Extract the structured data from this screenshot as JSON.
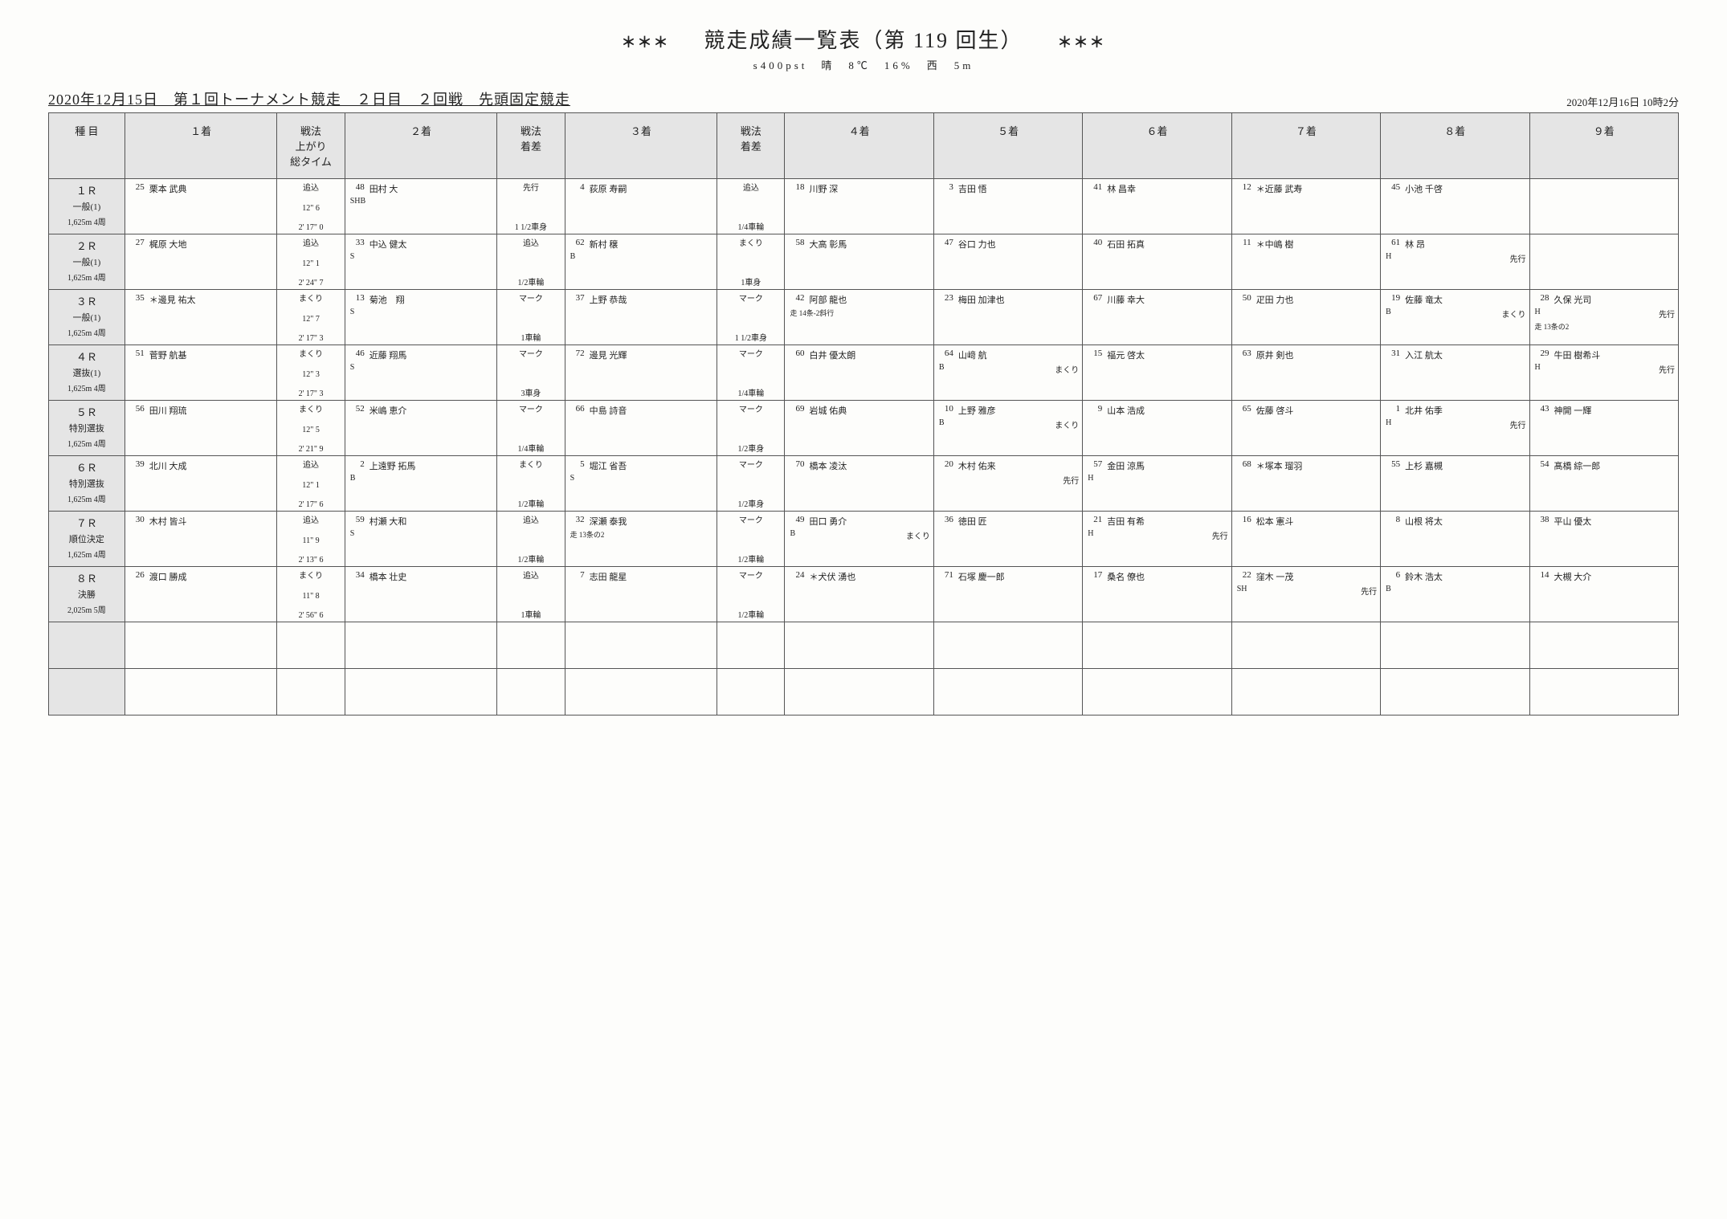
{
  "header": {
    "stars": "＊＊＊",
    "title": "競走成績一覧表（第 119 回生）",
    "subtitle": "s400pst　晴　8℃　16%　西　5m",
    "line_left": "2020年12月15日　第１回トーナメント競走　２日目　２回戦　先頭固定競走",
    "line_right": "2020年12月16日 10時2分"
  },
  "columns": [
    "種 目",
    "１着",
    "戦法\n上がり\n総タイム",
    "２着",
    "戦法\n着差",
    "３着",
    "戦法\n着差",
    "４着",
    "５着",
    "６着",
    "７着",
    "８着",
    "９着"
  ],
  "races": [
    {
      "event": {
        "race": "１Ｒ",
        "cat": "一般(1)",
        "dist": "1,625m 4周"
      },
      "p1": {
        "num": "25",
        "name": "栗本 武典"
      },
      "t1": {
        "a": "追込",
        "b": "12\" 6",
        "c": "2' 17\" 0"
      },
      "p2": {
        "num": "48",
        "name": "田村 大",
        "note": "SHB"
      },
      "t2": {
        "a": "先行",
        "c": "1 1/2車身"
      },
      "p3": {
        "num": "4",
        "name": "荻原 寿嗣"
      },
      "t3": {
        "a": "追込",
        "c": "1/4車輪"
      },
      "rest": [
        {
          "num": "18",
          "name": "川野 深"
        },
        {
          "num": "3",
          "name": "吉田 悟"
        },
        {
          "num": "41",
          "name": "林 昌幸"
        },
        {
          "num": "12",
          "name": "＊近藤 武寿"
        },
        {
          "num": "45",
          "name": "小池 千啓"
        },
        {}
      ]
    },
    {
      "event": {
        "race": "２Ｒ",
        "cat": "一般(1)",
        "dist": "1,625m 4周"
      },
      "p1": {
        "num": "27",
        "name": "梶原 大地"
      },
      "t1": {
        "a": "追込",
        "b": "12\" 1",
        "c": "2' 24\" 7"
      },
      "p2": {
        "num": "33",
        "name": "中込 健太",
        "note": "S"
      },
      "t2": {
        "a": "追込",
        "c": "1/2車輪"
      },
      "p3": {
        "num": "62",
        "name": "新村 穣",
        "note": "B"
      },
      "t3": {
        "a": "まくり",
        "c": "1車身"
      },
      "rest": [
        {
          "num": "58",
          "name": "大高 彰馬"
        },
        {
          "num": "47",
          "name": "谷口 力也"
        },
        {
          "num": "40",
          "name": "石田 拓真"
        },
        {
          "num": "11",
          "name": "＊中嶋 樹"
        },
        {
          "num": "61",
          "name": "林 昂",
          "note": "H",
          "note2": "先行"
        },
        {}
      ]
    },
    {
      "event": {
        "race": "３Ｒ",
        "cat": "一般(1)",
        "dist": "1,625m 4周"
      },
      "p1": {
        "num": "35",
        "name": "＊邊見 祐太"
      },
      "t1": {
        "a": "まくり",
        "b": "12\" 7",
        "c": "2' 17\" 3"
      },
      "p2": {
        "num": "13",
        "name": "菊池　翔",
        "note": "S"
      },
      "t2": {
        "a": "マーク",
        "c": "1車輪"
      },
      "p3": {
        "num": "37",
        "name": "上野 恭哉"
      },
      "t3": {
        "a": "マーク",
        "c": "1 1/2車身"
      },
      "rest": [
        {
          "num": "42",
          "name": "阿部 龍也",
          "note3": "走 14条-2斜行"
        },
        {
          "num": "23",
          "name": "梅田 加津也"
        },
        {
          "num": "67",
          "name": "川藤 幸大"
        },
        {
          "num": "50",
          "name": "疋田 力也"
        },
        {
          "num": "19",
          "name": "佐藤 竜太",
          "note": "B",
          "note2": "まくり"
        },
        {
          "num": "28",
          "name": "久保 光司",
          "note": "H",
          "note2": "先行",
          "note3": "走 13条の2"
        }
      ]
    },
    {
      "event": {
        "race": "４Ｒ",
        "cat": "選抜(1)",
        "dist": "1,625m 4周"
      },
      "p1": {
        "num": "51",
        "name": "菅野 航基"
      },
      "t1": {
        "a": "まくり",
        "b": "12\" 3",
        "c": "2' 17\" 3"
      },
      "p2": {
        "num": "46",
        "name": "近藤 翔馬",
        "note": "S"
      },
      "t2": {
        "a": "マーク",
        "c": "3車身"
      },
      "p3": {
        "num": "72",
        "name": "邊見 光輝"
      },
      "t3": {
        "a": "マーク",
        "c": "1/4車輪"
      },
      "rest": [
        {
          "num": "60",
          "name": "白井 優太朗"
        },
        {
          "num": "64",
          "name": "山﨑 航",
          "note": "B",
          "note2": "まくり"
        },
        {
          "num": "15",
          "name": "福元 啓太"
        },
        {
          "num": "63",
          "name": "原井 剣也"
        },
        {
          "num": "31",
          "name": "入江 航太"
        },
        {
          "num": "29",
          "name": "牛田 樹希斗",
          "note": "H",
          "note2": "先行"
        }
      ]
    },
    {
      "event": {
        "race": "５Ｒ",
        "cat": "特別選抜",
        "dist": "1,625m 4周"
      },
      "p1": {
        "num": "56",
        "name": "田川 翔琉"
      },
      "t1": {
        "a": "まくり",
        "b": "12\" 5",
        "c": "2' 21\" 9"
      },
      "p2": {
        "num": "52",
        "name": "米嶋 恵介"
      },
      "t2": {
        "a": "マーク",
        "c": "1/4車輪"
      },
      "p3": {
        "num": "66",
        "name": "中島 詩音"
      },
      "t3": {
        "a": "マーク",
        "c": "1/2車身"
      },
      "rest": [
        {
          "num": "69",
          "name": "岩城 佑典"
        },
        {
          "num": "10",
          "name": "上野 雅彦",
          "note": "B",
          "note2": "まくり"
        },
        {
          "num": "9",
          "name": "山本 浩成"
        },
        {
          "num": "65",
          "name": "佐藤 啓斗"
        },
        {
          "num": "1",
          "name": "北井 佑季",
          "note": "H",
          "note2": "先行"
        },
        {
          "num": "43",
          "name": "神開 一輝"
        }
      ]
    },
    {
      "event": {
        "race": "６Ｒ",
        "cat": "特別選抜",
        "dist": "1,625m 4周"
      },
      "p1": {
        "num": "39",
        "name": "北川 大成"
      },
      "t1": {
        "a": "追込",
        "b": "12\" 1",
        "c": "2' 17\" 6"
      },
      "p2": {
        "num": "2",
        "name": "上遠野 拓馬",
        "note": "B"
      },
      "t2": {
        "a": "まくり",
        "c": "1/2車輪"
      },
      "p3": {
        "num": "5",
        "name": "堀江 省吾",
        "note": "S"
      },
      "t3": {
        "a": "マーク",
        "c": "1/2車身"
      },
      "rest": [
        {
          "num": "70",
          "name": "橋本 凌汰"
        },
        {
          "num": "20",
          "name": "木村 佑来",
          "note2": "先行"
        },
        {
          "num": "57",
          "name": "金田 涼馬",
          "note": "H"
        },
        {
          "num": "68",
          "name": "＊塚本 瑠羽"
        },
        {
          "num": "55",
          "name": "上杉 嘉槻"
        },
        {
          "num": "54",
          "name": "髙橋 綜一郎"
        }
      ]
    },
    {
      "event": {
        "race": "７Ｒ",
        "cat": "順位決定",
        "dist": "1,625m 4周"
      },
      "p1": {
        "num": "30",
        "name": "木村 皆斗"
      },
      "t1": {
        "a": "追込",
        "b": "11\" 9",
        "c": "2' 13\" 6"
      },
      "p2": {
        "num": "59",
        "name": "村瀬 大和",
        "note": "S"
      },
      "t2": {
        "a": "追込",
        "c": "1/2車輪"
      },
      "p3": {
        "num": "32",
        "name": "深瀬 泰我",
        "note3": "走 13条の2"
      },
      "t3": {
        "a": "マーク",
        "c": "1/2車輪"
      },
      "rest": [
        {
          "num": "49",
          "name": "田口 勇介",
          "note": "B",
          "note2": "まくり"
        },
        {
          "num": "36",
          "name": "徳田 匠"
        },
        {
          "num": "21",
          "name": "吉田 有希",
          "note": "H",
          "note2": "先行"
        },
        {
          "num": "16",
          "name": "松本 憲斗"
        },
        {
          "num": "8",
          "name": "山根 将太"
        },
        {
          "num": "38",
          "name": "平山 優太"
        }
      ]
    },
    {
      "event": {
        "race": "８Ｒ",
        "cat": "決勝",
        "dist": "2,025m 5周"
      },
      "p1": {
        "num": "26",
        "name": "渡口 勝成"
      },
      "t1": {
        "a": "まくり",
        "b": "11\" 8",
        "c": "2' 56\" 6"
      },
      "p2": {
        "num": "34",
        "name": "橋本 壮史"
      },
      "t2": {
        "a": "追込",
        "c": "1車輪"
      },
      "p3": {
        "num": "7",
        "name": "志田 龍星"
      },
      "t3": {
        "a": "マーク",
        "c": "1/2車輪"
      },
      "rest": [
        {
          "num": "24",
          "name": "＊犬伏 湧也"
        },
        {
          "num": "71",
          "name": "石塚 慶一郎"
        },
        {
          "num": "17",
          "name": "桑名 僚也"
        },
        {
          "num": "22",
          "name": "窪木 一茂",
          "note": "SH",
          "note2": "先行"
        },
        {
          "num": "6",
          "name": "鈴木 浩太",
          "note": "B"
        },
        {
          "num": "14",
          "name": "大槻 大介"
        }
      ]
    }
  ]
}
